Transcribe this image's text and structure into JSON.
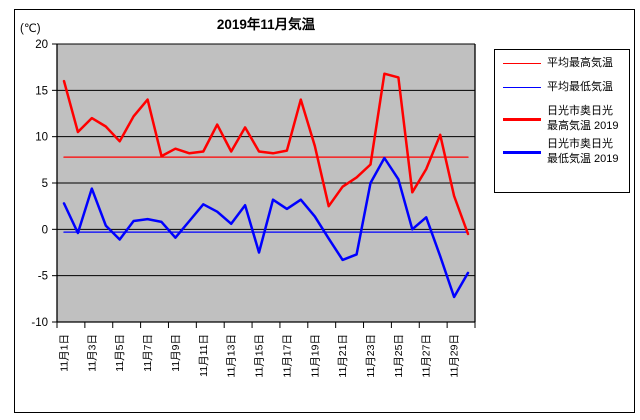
{
  "chart": {
    "title": "2019年11月気温",
    "y_unit_label": "(℃)"
  },
  "legend": {
    "items": [
      {
        "label": "平均最高気温",
        "label_lines": [
          "平均最高気温"
        ],
        "color": "#ff0000",
        "style": "thin"
      },
      {
        "label": "平均最低気温",
        "label_lines": [
          "平均最低気温"
        ],
        "color": "#0000ff",
        "style": "thin"
      },
      {
        "label": "日光市奥日光 最高気温 2019",
        "label_lines": [
          "日光市奥日光",
          "最高気温 2019"
        ],
        "color": "#ff0000",
        "style": "thick"
      },
      {
        "label": "日光市奥日光 最低気温 2019",
        "label_lines": [
          "日光市奥日光",
          "最低気温 2019"
        ],
        "color": "#0000ff",
        "style": "thick"
      }
    ]
  },
  "chart_data": {
    "type": "line",
    "title": "2019年11月気温",
    "ylabel": "(℃)",
    "ylim": [
      -10,
      20
    ],
    "y_ticks": [
      20,
      15,
      10,
      5,
      0,
      -5,
      -10
    ],
    "grid": true,
    "plot_bg_color": "#c0c0c0",
    "gridline_color": "#000000",
    "x_days": [
      1,
      2,
      3,
      4,
      5,
      6,
      7,
      8,
      9,
      10,
      11,
      12,
      13,
      14,
      15,
      16,
      17,
      18,
      19,
      20,
      21,
      22,
      23,
      24,
      25,
      26,
      27,
      28,
      29,
      30
    ],
    "x_tick_labels": [
      "11月1日",
      "11月3日",
      "11月5日",
      "11月7日",
      "11月9日",
      "11月11日",
      "11月13日",
      "11月15日",
      "11月17日",
      "11月19日",
      "11月21日",
      "11月23日",
      "11月25日",
      "11月27日",
      "11月29日"
    ],
    "x_tick_label_days": [
      1,
      3,
      5,
      7,
      9,
      11,
      13,
      15,
      17,
      19,
      21,
      23,
      25,
      27,
      29
    ],
    "legend_position": "right",
    "series": [
      {
        "name": "平均最高気温",
        "color": "#ff0000",
        "stroke": "thin",
        "constant": 7.8,
        "values": null
      },
      {
        "name": "平均最低気温",
        "color": "#0000ff",
        "stroke": "thin",
        "constant": -0.3,
        "values": null
      },
      {
        "name": "日光市奥日光 最高気温 2019",
        "color": "#ff0000",
        "stroke": "thick",
        "constant": null,
        "values": [
          16.0,
          10.5,
          12.0,
          11.1,
          9.5,
          12.2,
          14.0,
          7.9,
          8.7,
          8.2,
          8.4,
          11.3,
          8.4,
          11.0,
          8.4,
          8.2,
          8.5,
          14.0,
          9.0,
          2.5,
          4.6,
          5.6,
          7.0,
          16.8,
          16.4,
          4.0,
          6.5,
          10.2,
          3.6,
          -0.5
        ]
      },
      {
        "name": "日光市奥日光 最低気温 2019",
        "color": "#0000ff",
        "stroke": "thick",
        "constant": null,
        "values": [
          2.8,
          -0.4,
          4.4,
          0.4,
          -1.1,
          0.9,
          1.1,
          0.8,
          -0.9,
          0.9,
          2.7,
          1.9,
          0.6,
          2.6,
          -2.5,
          3.2,
          2.2,
          3.2,
          1.4,
          -1.0,
          -3.3,
          -2.7,
          5.0,
          7.7,
          5.4,
          0.0,
          1.3,
          -2.9,
          -7.3,
          -4.7
        ]
      }
    ]
  }
}
